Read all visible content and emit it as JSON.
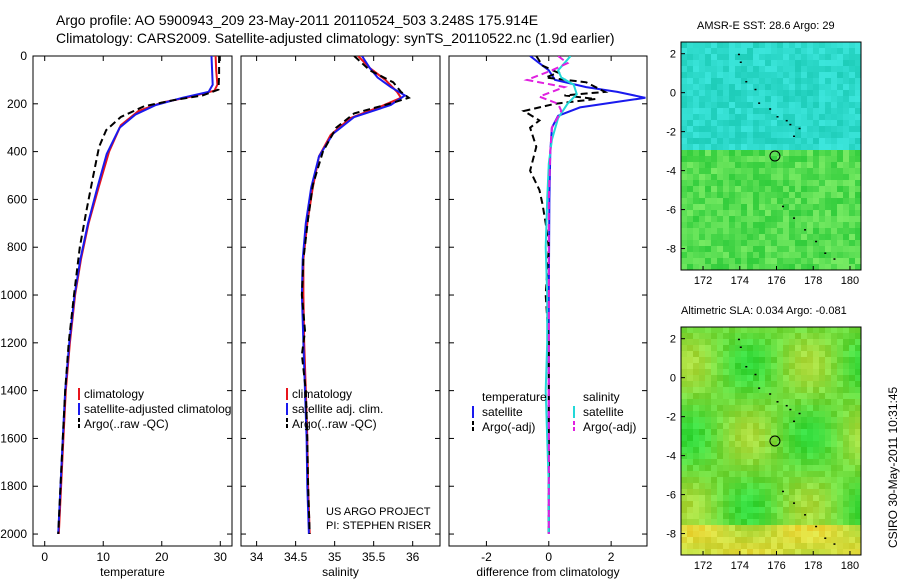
{
  "header": {
    "line1": "Argo profile: AO 5900943_209 23-May-2011 20110524_503 3.248S 175.914E",
    "line2": "Climatology: CARS2009. Satellite-adjusted climatology: synTS_20110522.nc (1.9d earlier)"
  },
  "credit": {
    "line1": "US ARGO PROJECT",
    "line2": "PI: STEPHEN RISER"
  },
  "stamp": "CSIRO 30-May-2011 10:31:45",
  "colors": {
    "red": "#e8141c",
    "blue": "#1a1aee",
    "black": "#000000",
    "cyan": "#22d8d8",
    "magenta": "#e020e0"
  },
  "chart_data": [
    {
      "type": "line",
      "xlabel": "temperature",
      "ylabel": "",
      "xlim": [
        -2,
        32
      ],
      "ylim": [
        2050,
        0
      ],
      "xticks": [
        0,
        10,
        20,
        30
      ],
      "yticks": [
        0,
        200,
        400,
        600,
        800,
        1000,
        1200,
        1400,
        1600,
        1800,
        2000
      ],
      "legend": [
        "climatology",
        "satellite-adjusted climatology",
        "Argo(..raw -QC)"
      ],
      "series": [
        {
          "name": "climatology",
          "color": "red",
          "dash": false,
          "points": [
            [
              29.2,
              0
            ],
            [
              29.3,
              60
            ],
            [
              29.5,
              120
            ],
            [
              29,
              145
            ],
            [
              25,
              170
            ],
            [
              20,
              195
            ],
            [
              16,
              230
            ],
            [
              13,
              290
            ],
            [
              11,
              400
            ],
            [
              9.2,
              550
            ],
            [
              7.5,
              700
            ],
            [
              6.2,
              850
            ],
            [
              5.2,
              1000
            ],
            [
              4.3,
              1200
            ],
            [
              3.6,
              1400
            ],
            [
              3.2,
              1600
            ],
            [
              2.8,
              1800
            ],
            [
              2.4,
              2000
            ]
          ]
        },
        {
          "name": "satellite-adjusted climatology",
          "color": "blue",
          "dash": false,
          "points": [
            [
              28.5,
              0
            ],
            [
              28.6,
              60
            ],
            [
              28.7,
              120
            ],
            [
              28,
              150
            ],
            [
              23.5,
              175
            ],
            [
              19,
              205
            ],
            [
              15.5,
              245
            ],
            [
              12.8,
              300
            ],
            [
              10.6,
              410
            ],
            [
              9,
              550
            ],
            [
              7.4,
              700
            ],
            [
              6.1,
              850
            ],
            [
              5.1,
              1000
            ],
            [
              4.2,
              1200
            ],
            [
              3.5,
              1400
            ],
            [
              3.1,
              1600
            ],
            [
              2.7,
              1800
            ],
            [
              2.3,
              2000
            ]
          ]
        },
        {
          "name": "Argo(..raw -QC)",
          "color": "black",
          "dash": true,
          "points": [
            [
              29.8,
              0
            ],
            [
              29.8,
              80
            ],
            [
              29.7,
              140
            ],
            [
              27,
              165
            ],
            [
              22,
              185
            ],
            [
              17,
              210
            ],
            [
              13,
              255
            ],
            [
              10.5,
              310
            ],
            [
              9.3,
              380
            ],
            [
              8.3,
              500
            ],
            [
              7.1,
              650
            ],
            [
              6,
              800
            ],
            [
              5,
              1000
            ],
            [
              4.1,
              1200
            ],
            [
              3.5,
              1400
            ],
            [
              3.1,
              1600
            ],
            [
              2.7,
              1800
            ],
            [
              2.3,
              2000
            ]
          ]
        }
      ]
    },
    {
      "type": "line",
      "xlabel": "salinity",
      "xlim": [
        33.8,
        36.35
      ],
      "ylim": [
        2050,
        0
      ],
      "xticks": [
        34,
        34.5,
        35,
        35.5,
        36
      ],
      "xticklabels": [
        "34",
        "34.5",
        "35",
        "35.5",
        "36"
      ],
      "legend": [
        "climatology",
        "satellite adj. clim.",
        "Argo(..raw -QC)"
      ],
      "series": [
        {
          "name": "climatology",
          "color": "red",
          "dash": false,
          "points": [
            [
              35.3,
              0
            ],
            [
              35.45,
              50
            ],
            [
              35.65,
              100
            ],
            [
              35.8,
              150
            ],
            [
              35.85,
              175
            ],
            [
              35.6,
              210
            ],
            [
              35.2,
              260
            ],
            [
              34.95,
              330
            ],
            [
              34.8,
              420
            ],
            [
              34.72,
              550
            ],
            [
              34.65,
              700
            ],
            [
              34.6,
              850
            ],
            [
              34.6,
              1000
            ],
            [
              34.61,
              1200
            ],
            [
              34.63,
              1400
            ],
            [
              34.65,
              1600
            ],
            [
              34.66,
              1800
            ],
            [
              34.68,
              2000
            ]
          ]
        },
        {
          "name": "satellite adj. clim.",
          "color": "blue",
          "dash": false,
          "points": [
            [
              35.35,
              0
            ],
            [
              35.45,
              50
            ],
            [
              35.55,
              90
            ],
            [
              35.72,
              130
            ],
            [
              35.9,
              165
            ],
            [
              35.72,
              205
            ],
            [
              35.25,
              255
            ],
            [
              34.98,
              325
            ],
            [
              34.8,
              420
            ],
            [
              34.7,
              550
            ],
            [
              34.63,
              700
            ],
            [
              34.59,
              850
            ],
            [
              34.58,
              1000
            ],
            [
              34.6,
              1200
            ],
            [
              34.62,
              1400
            ],
            [
              34.64,
              1600
            ],
            [
              34.65,
              1800
            ],
            [
              34.67,
              2000
            ]
          ]
        },
        {
          "name": "Argo(..raw -QC)",
          "color": "black",
          "dash": true,
          "points": [
            [
              35.25,
              0
            ],
            [
              35.45,
              60
            ],
            [
              35.75,
              110
            ],
            [
              35.85,
              150
            ],
            [
              35.95,
              175
            ],
            [
              35.7,
              200
            ],
            [
              35.25,
              240
            ],
            [
              35.02,
              300
            ],
            [
              34.85,
              400
            ],
            [
              34.72,
              540
            ],
            [
              34.66,
              680
            ],
            [
              34.6,
              850
            ],
            [
              34.58,
              1000
            ],
            [
              34.62,
              1150
            ],
            [
              34.58,
              1250
            ],
            [
              34.63,
              1400
            ],
            [
              34.65,
              1600
            ],
            [
              34.66,
              1800
            ],
            [
              34.68,
              2000
            ]
          ]
        }
      ]
    },
    {
      "type": "line",
      "xlabel": "difference from climatology",
      "xlim": [
        -3.2,
        3.15
      ],
      "ylim": [
        2050,
        0
      ],
      "xticks": [
        -2,
        0,
        2
      ],
      "legend_left": {
        "header": "temperature",
        "items": [
          "satellite",
          "Argo(-adj)"
        ]
      },
      "legend_right": {
        "header": "salinity",
        "items": [
          "satellite",
          "Argo(-adj)"
        ]
      },
      "series": [
        {
          "name": "temperature satellite",
          "color": "blue",
          "dash": false,
          "points": [
            [
              -0.6,
              0
            ],
            [
              -0.3,
              30
            ],
            [
              0,
              60
            ],
            [
              0.2,
              100
            ],
            [
              1.2,
              130
            ],
            [
              2.2,
              150
            ],
            [
              3.1,
              175
            ],
            [
              2.3,
              190
            ],
            [
              1,
              215
            ],
            [
              0.3,
              250
            ],
            [
              0.1,
              300
            ],
            [
              0.05,
              400
            ],
            [
              0.02,
              600
            ],
            [
              0.01,
              800
            ],
            [
              0,
              1000
            ],
            [
              0,
              2000
            ]
          ]
        },
        {
          "name": "temperature Argo(-adj)",
          "color": "black",
          "dash": true,
          "points": [
            [
              -0.4,
              0
            ],
            [
              -0.2,
              40
            ],
            [
              0.3,
              70
            ],
            [
              -0.1,
              90
            ],
            [
              1.2,
              110
            ],
            [
              1.8,
              150
            ],
            [
              0.5,
              165
            ],
            [
              1.5,
              180
            ],
            [
              0.2,
              200
            ],
            [
              -0.8,
              230
            ],
            [
              -0.3,
              270
            ],
            [
              -0.6,
              300
            ],
            [
              -0.4,
              380
            ],
            [
              -0.6,
              480
            ],
            [
              -0.3,
              560
            ],
            [
              -0.2,
              620
            ],
            [
              -0.1,
              700
            ],
            [
              0,
              800
            ],
            [
              -0.1,
              1000
            ],
            [
              0,
              1200
            ],
            [
              0,
              2000
            ]
          ]
        },
        {
          "name": "salinity satellite",
          "color": "cyan",
          "dash": false,
          "points": [
            [
              0.7,
              0
            ],
            [
              0.5,
              30
            ],
            [
              0.3,
              60
            ],
            [
              0.4,
              90
            ],
            [
              0.8,
              120
            ],
            [
              0.9,
              160
            ],
            [
              0.6,
              200
            ],
            [
              0.3,
              260
            ],
            [
              0.1,
              350
            ],
            [
              0,
              450
            ],
            [
              -0.05,
              600
            ],
            [
              -0.1,
              800
            ],
            [
              -0.05,
              1000
            ],
            [
              -0.05,
              1200
            ],
            [
              -0.1,
              1400
            ],
            [
              -0.05,
              1600
            ],
            [
              0,
              1800
            ],
            [
              0,
              2000
            ]
          ]
        },
        {
          "name": "salinity Argo(-adj)",
          "color": "magenta",
          "dash": true,
          "points": [
            [
              0.3,
              0
            ],
            [
              0.6,
              30
            ],
            [
              0.1,
              60
            ],
            [
              -0.7,
              100
            ],
            [
              0.5,
              130
            ],
            [
              -0.3,
              170
            ],
            [
              0.3,
              200
            ],
            [
              0.4,
              230
            ],
            [
              0.1,
              300
            ],
            [
              0.05,
              400
            ],
            [
              0,
              600
            ],
            [
              0,
              2000
            ]
          ]
        }
      ]
    },
    {
      "type": "heatmap",
      "title": "AMSR-E SST: 28.6 Argo: 29",
      "xlim": [
        170.8,
        180.6
      ],
      "ylim": [
        -9.1,
        2.6
      ],
      "xticks": [
        172,
        174,
        176,
        178,
        180
      ],
      "yticks": [
        2,
        0,
        -2,
        -4,
        -6,
        -8
      ],
      "palette": "cyan-north-green-south",
      "argo_position": [
        175.914,
        -3.248
      ]
    },
    {
      "type": "heatmap",
      "title": "Altimetric SLA: 0.034 Argo: -0.081",
      "xlim": [
        170.8,
        180.6
      ],
      "ylim": [
        -9.1,
        2.6
      ],
      "xticks": [
        172,
        174,
        176,
        178,
        180
      ],
      "yticks": [
        2,
        0,
        -2,
        -4,
        -6,
        -8
      ],
      "palette": "green-yellow",
      "argo_position": [
        175.914,
        -3.248
      ]
    }
  ]
}
